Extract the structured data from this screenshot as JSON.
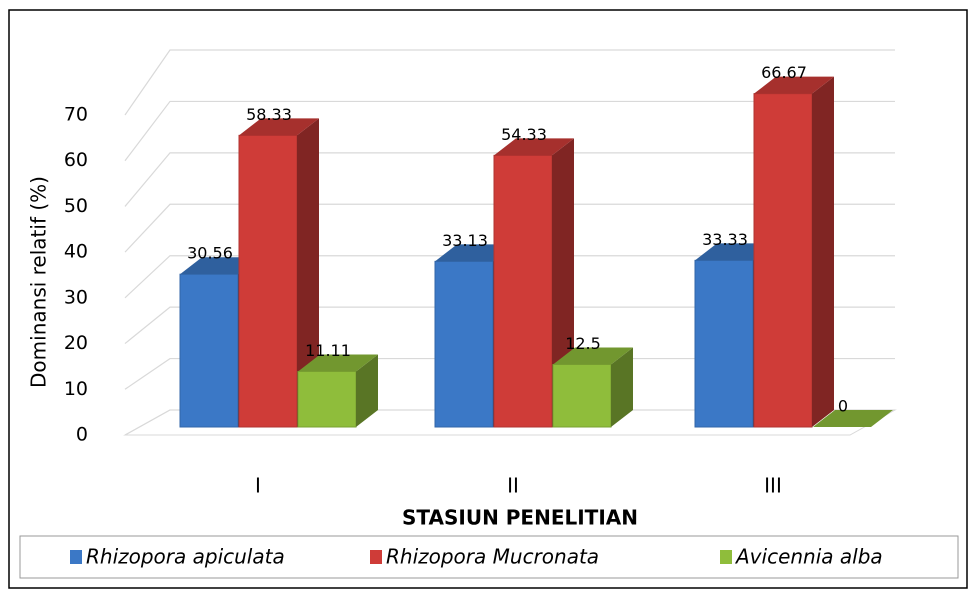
{
  "chart_data": {
    "type": "bar3d",
    "x_label": "STASIUN PENELITIAN",
    "y_label": "Dominansi relatif (%)",
    "categories": [
      "I",
      "II",
      "III"
    ],
    "series": [
      {
        "name": "Rhizopora apiculata",
        "color": "#3b78c6",
        "values": [
          30.56,
          33.13,
          33.33
        ]
      },
      {
        "name": "Rhizopora Mucronata",
        "color": "#cf3c38",
        "values": [
          58.33,
          54.33,
          66.67
        ]
      },
      {
        "name": "Avicennia alba",
        "color": "#8fbd3b",
        "values": [
          11.11,
          12.5,
          0
        ]
      }
    ],
    "ylim": [
      0,
      70
    ],
    "yticks": [
      0,
      10,
      20,
      30,
      40,
      50,
      60,
      70
    ],
    "grid": true,
    "legend": "bottom"
  }
}
